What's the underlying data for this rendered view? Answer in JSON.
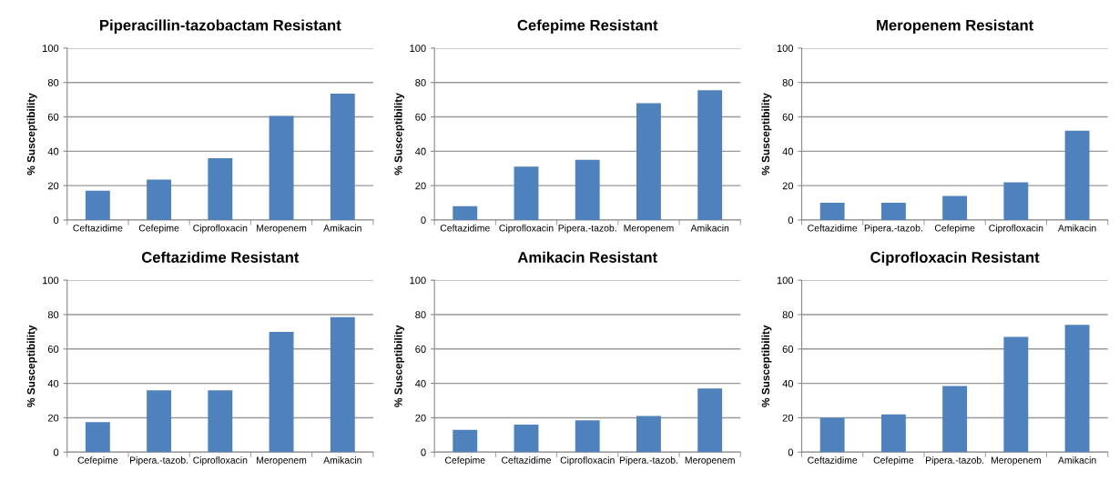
{
  "chart_data": [
    {
      "type": "bar",
      "title": "Piperacillin-tazobactam Resistant",
      "ylabel": "% Susceptibility",
      "categories": [
        "Ceftazidime",
        "Cefepime",
        "Ciprofloxacin",
        "Meropenem",
        "Amikacin"
      ],
      "values": [
        17,
        23.5,
        36,
        60.5,
        73.5
      ],
      "color": "#4f81bd",
      "ylim": [
        0,
        100
      ],
      "yticks": [
        0,
        20,
        40,
        60,
        80,
        100
      ],
      "grid": "y"
    },
    {
      "type": "bar",
      "title": "Cefepime Resistant",
      "ylabel": "% Susceptibility",
      "categories": [
        "Ceftazidime",
        "Ciprofloxacin",
        "Pipera.-tazob.",
        "Meropenem",
        "Amikacin"
      ],
      "values": [
        8,
        31,
        35,
        68,
        75.5
      ],
      "color": "#4f81bd",
      "ylim": [
        0,
        100
      ],
      "yticks": [
        0,
        20,
        40,
        60,
        80,
        100
      ],
      "grid": "y"
    },
    {
      "type": "bar",
      "title": "Meropenem Resistant",
      "ylabel": "% Susceptibility",
      "categories": [
        "Ceftazidime",
        "Pipera.-tazob.",
        "Cefepime",
        "Ciprofloxacin",
        "Amikacin"
      ],
      "values": [
        10,
        10,
        14,
        22,
        52
      ],
      "color": "#4f81bd",
      "ylim": [
        0,
        100
      ],
      "yticks": [
        0,
        20,
        40,
        60,
        80,
        100
      ],
      "grid": "y"
    },
    {
      "type": "bar",
      "title": "Ceftazidime Resistant",
      "ylabel": "% Susceptibility",
      "categories": [
        "Cefepime",
        "Pipera.-tazob.",
        "Ciprofloxacin",
        "Meropenem",
        "Amikacin"
      ],
      "values": [
        17.5,
        36,
        36,
        70,
        78.5
      ],
      "color": "#4f81bd",
      "ylim": [
        0,
        100
      ],
      "yticks": [
        0,
        20,
        40,
        60,
        80,
        100
      ],
      "grid": "y"
    },
    {
      "type": "bar",
      "title": "Amikacin Resistant",
      "ylabel": "% Susceptibility",
      "categories": [
        "Cefepime",
        "Ceftazidime",
        "Ciprofloxacin",
        "Pipera.-tazob.",
        "Meropenem"
      ],
      "values": [
        13,
        16,
        18.5,
        21,
        37
      ],
      "color": "#4f81bd",
      "ylim": [
        0,
        100
      ],
      "yticks": [
        0,
        20,
        40,
        60,
        80,
        100
      ],
      "grid": "y"
    },
    {
      "type": "bar",
      "title": "Ciprofloxacin Resistant",
      "ylabel": "% Susceptibility",
      "categories": [
        "Ceftazidime",
        "Cefepime",
        "Pipera.-tazob.",
        "Meropenem",
        "Amikacin"
      ],
      "values": [
        20,
        22,
        38.5,
        67,
        74
      ],
      "color": "#4f81bd",
      "ylim": [
        0,
        100
      ],
      "yticks": [
        0,
        20,
        40,
        60,
        80,
        100
      ],
      "grid": "y"
    }
  ]
}
